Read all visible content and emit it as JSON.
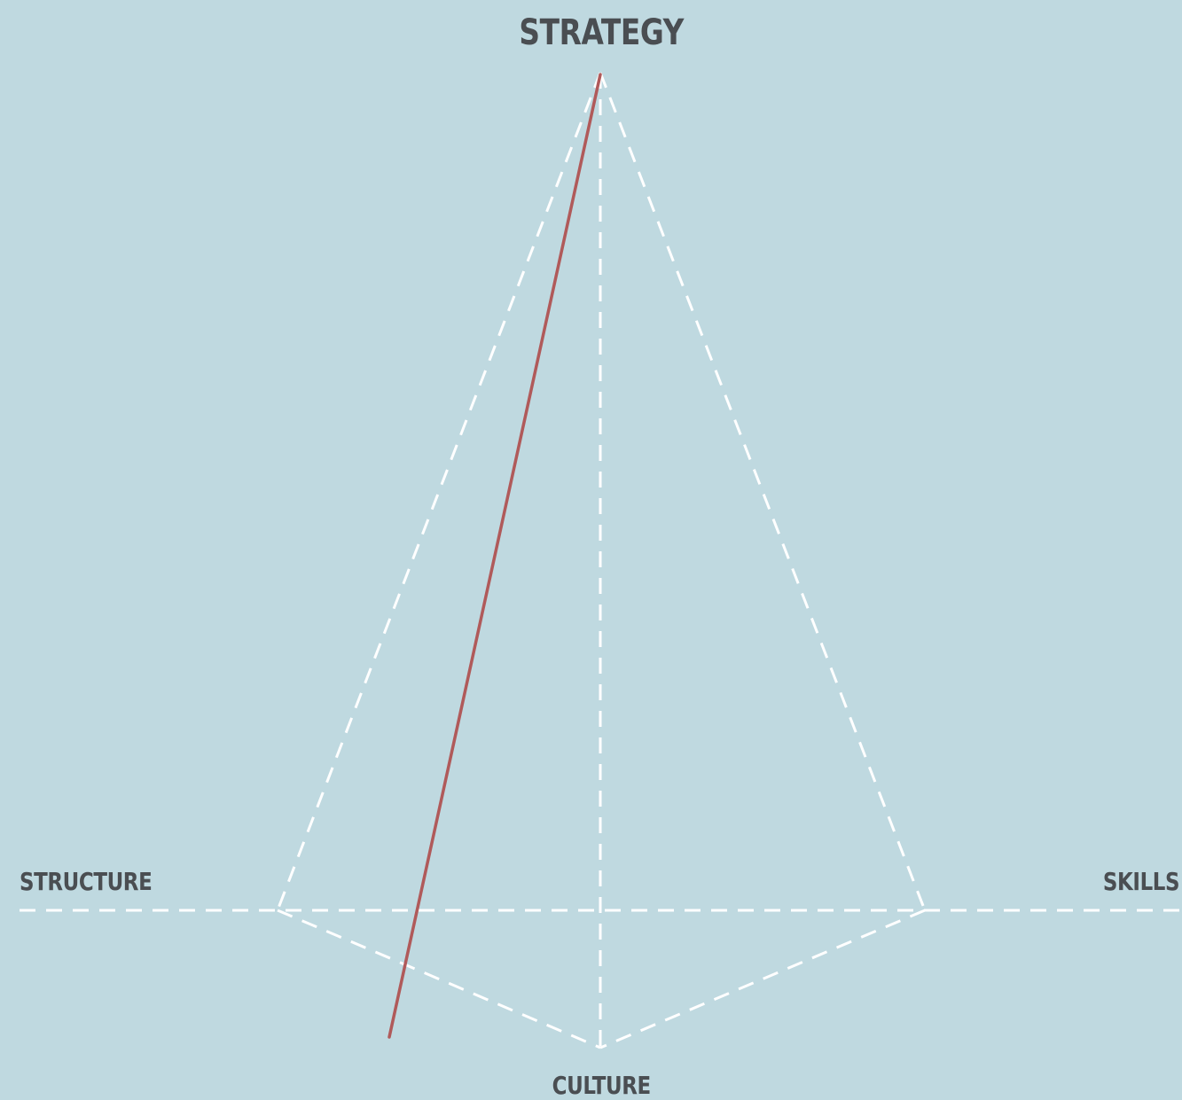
{
  "labels": {
    "top": "STRATEGY",
    "left": "STRUCTURE",
    "right": "SKILLS",
    "bottom": "CULTURE"
  },
  "colors": {
    "background": "#bfd9e0",
    "dashed_lines": "#ffffff",
    "highlight_line": "#b05a5a",
    "label_text": "#4a4e52"
  }
}
